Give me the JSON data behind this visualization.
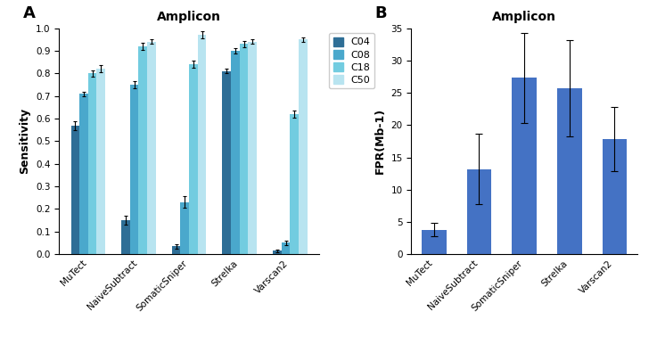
{
  "title_A": "Amplicon",
  "title_B": "Amplicon",
  "label_A": "A",
  "label_B": "B",
  "categories": [
    "MuTect",
    "NaiveSubtract",
    "SomaticSniper",
    "Strelka",
    "Varscan2"
  ],
  "legend_labels": [
    "C04",
    "C08",
    "C18",
    "C50"
  ],
  "bar_colors": [
    "#2e6e96",
    "#4aa8cc",
    "#72cce0",
    "#b8e4f0"
  ],
  "sensitivity_values": [
    [
      0.57,
      0.71,
      0.8,
      0.82
    ],
    [
      0.15,
      0.75,
      0.92,
      0.94
    ],
    [
      0.035,
      0.23,
      0.84,
      0.97
    ],
    [
      0.81,
      0.9,
      0.93,
      0.94
    ],
    [
      0.015,
      0.05,
      0.62,
      0.95
    ]
  ],
  "sensitivity_errors": [
    [
      0.02,
      0.01,
      0.015,
      0.015
    ],
    [
      0.02,
      0.015,
      0.015,
      0.01
    ],
    [
      0.01,
      0.025,
      0.015,
      0.015
    ],
    [
      0.01,
      0.01,
      0.015,
      0.01
    ],
    [
      0.005,
      0.01,
      0.015,
      0.01
    ]
  ],
  "fpr_values": [
    3.8,
    13.2,
    27.3,
    25.7,
    17.8
  ],
  "fpr_errors": [
    1.0,
    5.5,
    7.0,
    7.5,
    5.0
  ],
  "fpr_color": "#4472c4",
  "ylabel_A": "Sensitivity",
  "ylabel_B": "FPR(Mb-1)",
  "ylim_A": [
    0,
    1.0
  ],
  "ylim_B": [
    0,
    35
  ],
  "yticks_A": [
    0,
    0.1,
    0.2,
    0.3,
    0.4,
    0.5,
    0.6,
    0.7,
    0.8,
    0.9,
    1.0
  ],
  "yticks_B": [
    0,
    5,
    10,
    15,
    20,
    25,
    30,
    35
  ],
  "fig_width": 7.37,
  "fig_height": 3.96
}
